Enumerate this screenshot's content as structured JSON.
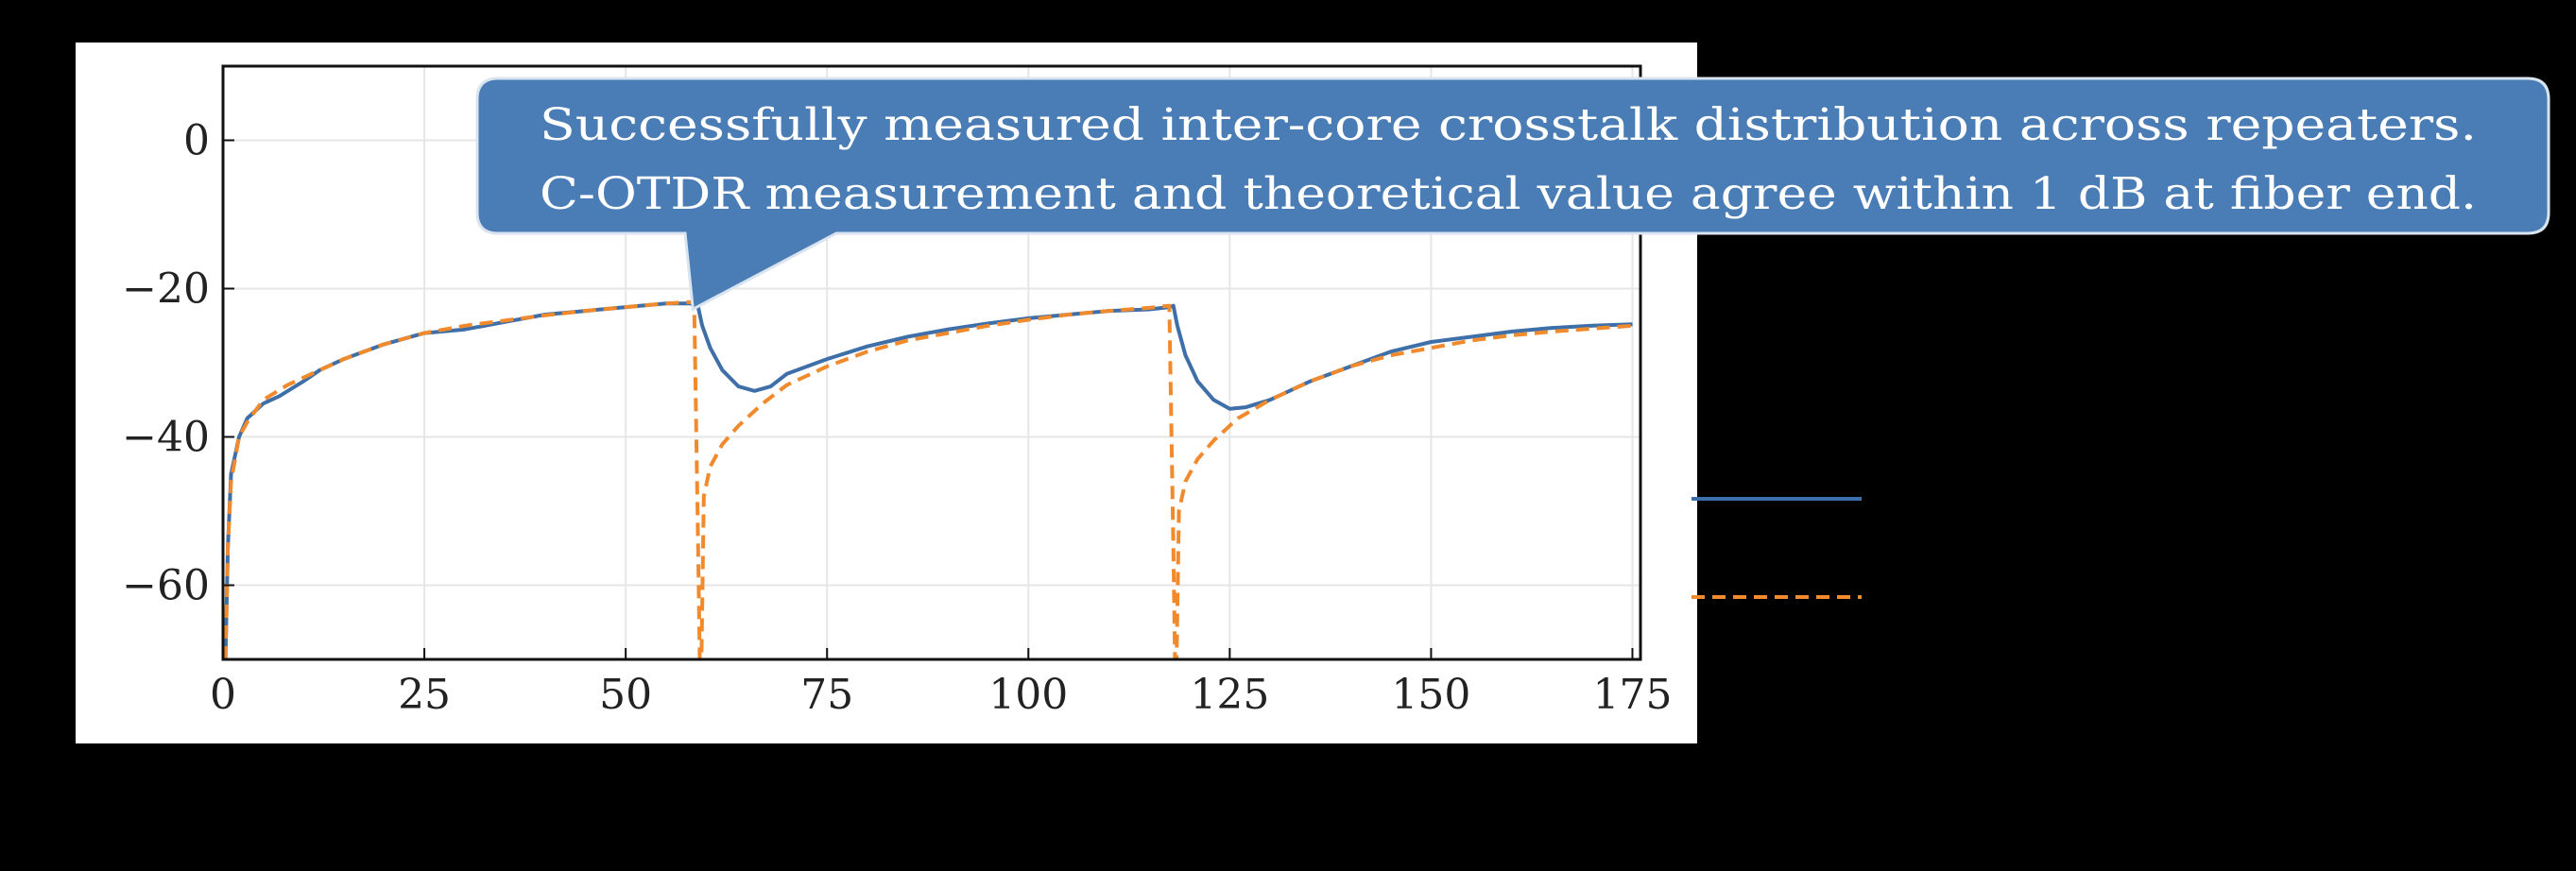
{
  "chart_data": {
    "type": "line",
    "title": "",
    "xlabel": "",
    "ylabel": "",
    "xlim": [
      0,
      176
    ],
    "ylim": [
      -70,
      10
    ],
    "x_ticks": [
      0,
      25,
      50,
      75,
      100,
      125,
      150,
      175
    ],
    "y_ticks": [
      0,
      -20,
      -40,
      -60
    ],
    "grid": true,
    "legend_placement": "right, outside plot (entry text not visible)",
    "series": [
      {
        "color": "#3f6fa8",
        "line_style": "solid",
        "points": [
          [
            0.3,
            -70
          ],
          [
            0.6,
            -55
          ],
          [
            1,
            -45
          ],
          [
            2,
            -40
          ],
          [
            3,
            -37.5
          ],
          [
            5,
            -35.5
          ],
          [
            7,
            -34.5
          ],
          [
            10,
            -32.5
          ],
          [
            12,
            -31
          ],
          [
            15,
            -29.5
          ],
          [
            20,
            -27.5
          ],
          [
            25,
            -26
          ],
          [
            30,
            -25.5
          ],
          [
            35,
            -24.5
          ],
          [
            40,
            -23.5
          ],
          [
            45,
            -23
          ],
          [
            50,
            -22.5
          ],
          [
            55,
            -22
          ],
          [
            58,
            -22
          ],
          [
            59,
            -22.5
          ],
          [
            59.5,
            -25
          ],
          [
            60.5,
            -28
          ],
          [
            62,
            -31
          ],
          [
            64,
            -33.2
          ],
          [
            66,
            -33.8
          ],
          [
            68,
            -33.2
          ],
          [
            70,
            -31.5
          ],
          [
            75,
            -29.5
          ],
          [
            80,
            -27.8
          ],
          [
            85,
            -26.5
          ],
          [
            90,
            -25.5
          ],
          [
            95,
            -24.7
          ],
          [
            100,
            -24
          ],
          [
            105,
            -23.5
          ],
          [
            110,
            -23
          ],
          [
            115,
            -22.8
          ],
          [
            117.5,
            -22.5
          ],
          [
            118,
            -22.3
          ],
          [
            118.5,
            -25
          ],
          [
            119.5,
            -29
          ],
          [
            121,
            -32.5
          ],
          [
            123,
            -35
          ],
          [
            125,
            -36.2
          ],
          [
            127,
            -36
          ],
          [
            130,
            -35
          ],
          [
            135,
            -32.5
          ],
          [
            140,
            -30.5
          ],
          [
            145,
            -28.5
          ],
          [
            150,
            -27.2
          ],
          [
            155,
            -26.5
          ],
          [
            160,
            -25.8
          ],
          [
            165,
            -25.3
          ],
          [
            170,
            -25
          ],
          [
            175,
            -24.8
          ]
        ]
      },
      {
        "color": "#f08a2c",
        "line_style": "dashed",
        "points": [
          [
            0.3,
            -70
          ],
          [
            0.6,
            -55
          ],
          [
            1,
            -46
          ],
          [
            2,
            -40
          ],
          [
            3,
            -38
          ],
          [
            5,
            -35
          ],
          [
            8,
            -33
          ],
          [
            10,
            -32
          ],
          [
            15,
            -29.5
          ],
          [
            20,
            -27.5
          ],
          [
            25,
            -26
          ],
          [
            30,
            -25
          ],
          [
            35,
            -24.3
          ],
          [
            40,
            -23.6
          ],
          [
            45,
            -23
          ],
          [
            50,
            -22.5
          ],
          [
            55,
            -22
          ],
          [
            58.5,
            -21.8
          ],
          [
            59,
            -55
          ],
          [
            59.2,
            -70
          ],
          [
            59.4,
            -70
          ],
          [
            59.7,
            -48
          ],
          [
            60.5,
            -44
          ],
          [
            62,
            -41
          ],
          [
            64,
            -38.5
          ],
          [
            67,
            -35.5
          ],
          [
            70,
            -33
          ],
          [
            75,
            -30.5
          ],
          [
            80,
            -28.5
          ],
          [
            85,
            -27
          ],
          [
            90,
            -26
          ],
          [
            95,
            -25
          ],
          [
            100,
            -24.2
          ],
          [
            105,
            -23.5
          ],
          [
            110,
            -23
          ],
          [
            115,
            -22.6
          ],
          [
            117.5,
            -22.3
          ],
          [
            118,
            -55
          ],
          [
            118.2,
            -70
          ],
          [
            118.4,
            -70
          ],
          [
            118.7,
            -50
          ],
          [
            119.5,
            -46
          ],
          [
            121,
            -43
          ],
          [
            123,
            -40.5
          ],
          [
            126,
            -37.5
          ],
          [
            130,
            -35
          ],
          [
            135,
            -32.5
          ],
          [
            140,
            -30.5
          ],
          [
            145,
            -29
          ],
          [
            150,
            -28
          ],
          [
            155,
            -27
          ],
          [
            160,
            -26.3
          ],
          [
            165,
            -25.8
          ],
          [
            170,
            -25.4
          ],
          [
            175,
            -25
          ]
        ]
      }
    ],
    "annotation": {
      "lines": [
        "Successfully measured inter-core crosstalk distribution across repeaters.",
        "C-OTDR measurement and theoretical value agree within 1 dB at fiber end."
      ],
      "points_to": [
        58,
        -22
      ],
      "fill": "#4a7db5"
    }
  }
}
